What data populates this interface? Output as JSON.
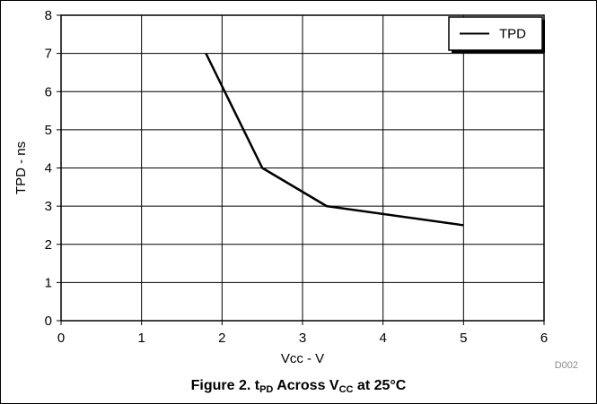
{
  "chart_data": {
    "type": "line",
    "title": "",
    "xlabel": "Vcc - V",
    "ylabel": "TPD - ns",
    "xlim": [
      0,
      6
    ],
    "ylim": [
      0,
      8
    ],
    "x_ticks": [
      "0",
      "1",
      "2",
      "3",
      "4",
      "5",
      "6"
    ],
    "y_ticks": [
      "0",
      "1",
      "2",
      "3",
      "4",
      "5",
      "6",
      "7",
      "8"
    ],
    "grid": true,
    "legend_position": "top-right",
    "series": [
      {
        "name": "TPD",
        "color": "#000000",
        "x": [
          1.8,
          2.5,
          3.3,
          5.0
        ],
        "y": [
          7.0,
          4.0,
          3.0,
          2.5
        ]
      }
    ]
  },
  "figure_code": "D002",
  "caption": {
    "prefix": "Figure 2. t",
    "sub1": "PD",
    "middle": " Across V",
    "sub2": "CC",
    "suffix": " at 25°C"
  }
}
